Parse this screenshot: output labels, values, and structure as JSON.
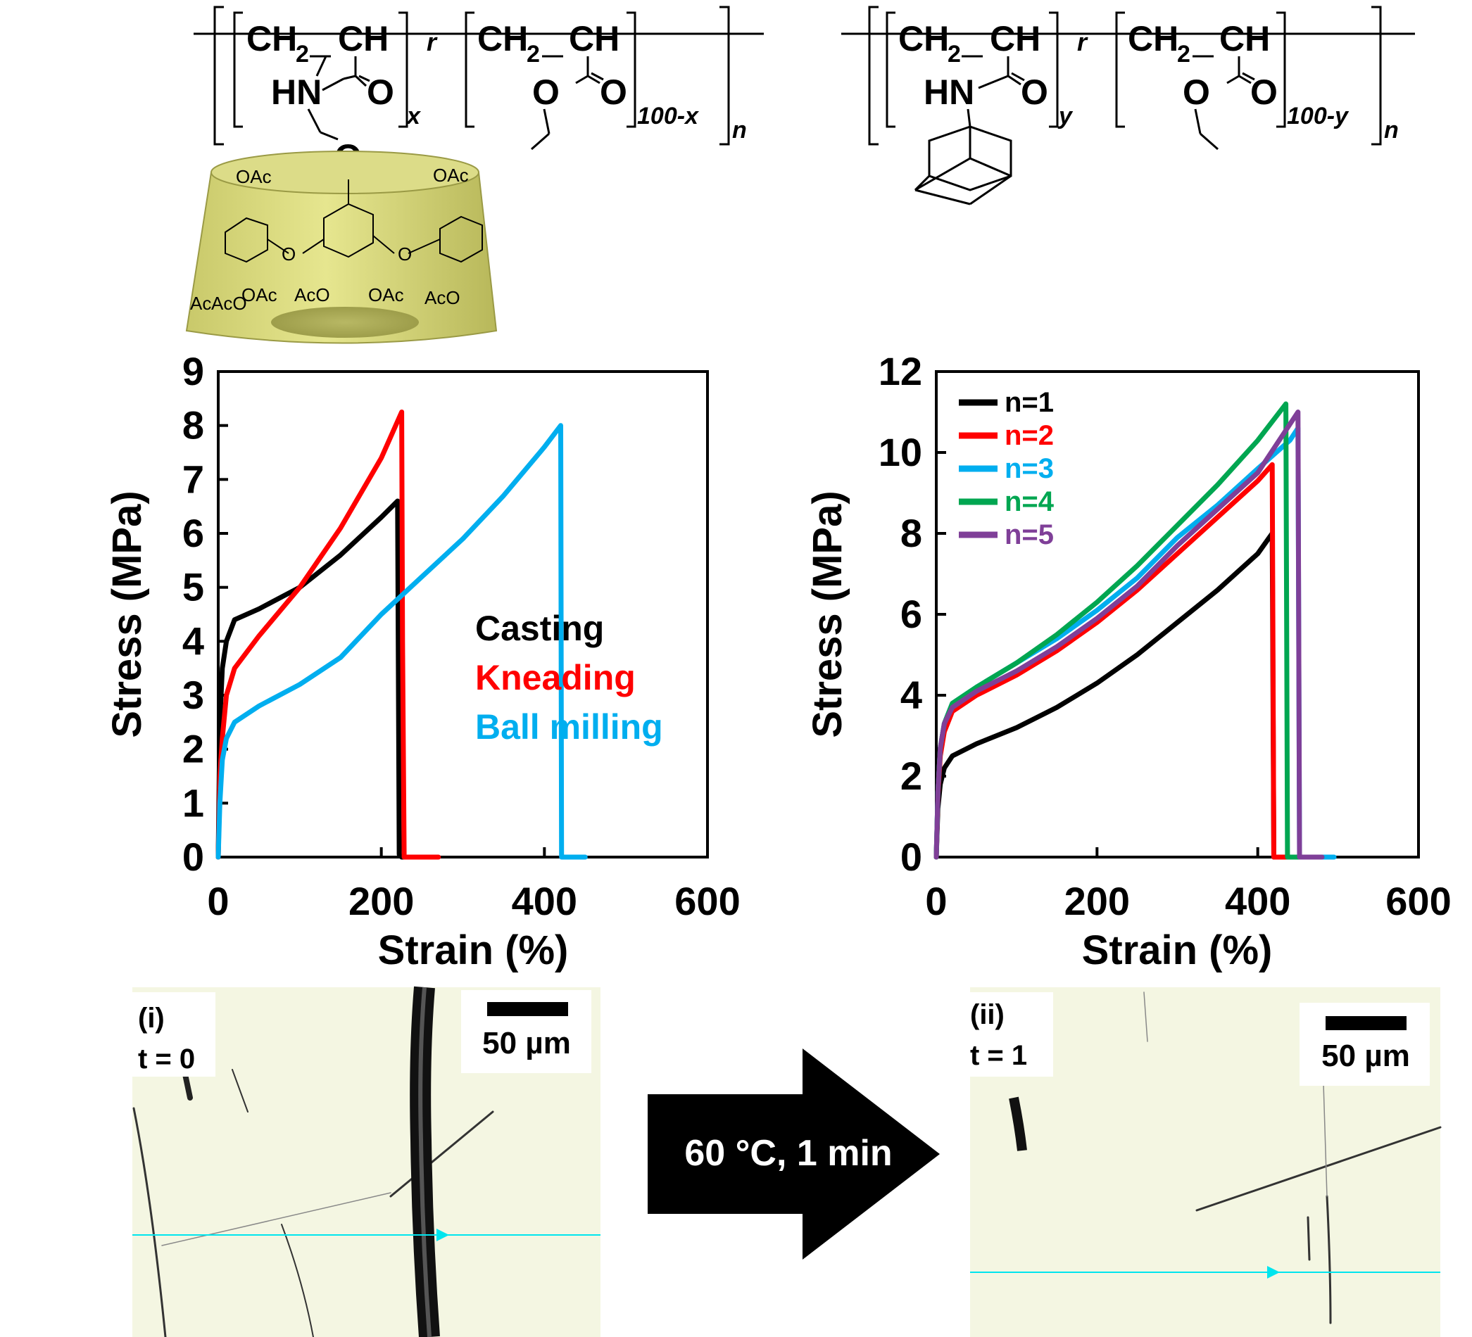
{
  "structures": {
    "left": {
      "ch2": "CH",
      "sub2": "2",
      "ch": "CH",
      "hn": "HN",
      "o": "O",
      "r": "r",
      "sub_x": "x",
      "sub_100x": "100-x",
      "sub_n": "n",
      "oac": "OAc",
      "aco": "AcO",
      "ac": "Ac",
      "o_link": "O"
    },
    "right": {
      "ch2": "CH",
      "sub2": "2",
      "ch": "CH",
      "hn": "HN",
      "o": "O",
      "r": "r",
      "sub_y": "y",
      "sub_100y": "100-y",
      "sub_n": "n"
    }
  },
  "chart_data": [
    {
      "type": "line",
      "xlabel": "Strain (%)",
      "ylabel": "Stress (MPa)",
      "xlim": [
        0,
        600
      ],
      "ylim": [
        0,
        9
      ],
      "xticks": [
        0,
        200,
        400,
        600
      ],
      "yticks": [
        0,
        1,
        2,
        3,
        4,
        5,
        6,
        7,
        8,
        9
      ],
      "legend_position": "center-right",
      "series": [
        {
          "name": "Casting",
          "color": "#000000",
          "x": [
            0,
            2,
            5,
            10,
            20,
            50,
            100,
            150,
            200,
            220,
            222,
            225,
            240,
            260
          ],
          "y": [
            0,
            2.5,
            3.5,
            4.0,
            4.4,
            4.6,
            5.0,
            5.6,
            6.3,
            6.6,
            0.05,
            0,
            0,
            0
          ]
        },
        {
          "name": "Kneading",
          "color": "#ff0000",
          "x": [
            0,
            2,
            5,
            10,
            20,
            50,
            100,
            150,
            200,
            225,
            226,
            228,
            240,
            270
          ],
          "y": [
            0,
            1.5,
            2.2,
            3.0,
            3.5,
            4.1,
            5.0,
            6.1,
            7.4,
            8.25,
            4.0,
            0,
            0,
            0
          ]
        },
        {
          "name": "Ball milling",
          "color": "#00aeef",
          "x": [
            0,
            2,
            5,
            10,
            20,
            50,
            100,
            150,
            200,
            250,
            300,
            350,
            400,
            420,
            421,
            430,
            450
          ],
          "y": [
            0,
            1.0,
            1.8,
            2.2,
            2.5,
            2.8,
            3.2,
            3.7,
            4.5,
            5.2,
            5.9,
            6.7,
            7.6,
            8.0,
            0,
            0,
            0
          ]
        }
      ]
    },
    {
      "type": "line",
      "xlabel": "Strain (%)",
      "ylabel": "Stress (MPa)",
      "xlim": [
        0,
        600
      ],
      "ylim": [
        0,
        12
      ],
      "xticks": [
        0,
        200,
        400,
        600
      ],
      "yticks": [
        0,
        2,
        4,
        6,
        8,
        10,
        12
      ],
      "legend_position": "top-left",
      "series": [
        {
          "name": "n=1",
          "color": "#000000",
          "x": [
            0,
            2,
            5,
            10,
            20,
            50,
            100,
            150,
            200,
            250,
            300,
            350,
            400,
            418,
            420,
            430,
            450
          ],
          "y": [
            0,
            1.2,
            1.8,
            2.2,
            2.5,
            2.8,
            3.2,
            3.7,
            4.3,
            5.0,
            5.8,
            6.6,
            7.5,
            8.0,
            0,
            0,
            0
          ]
        },
        {
          "name": "n=2",
          "color": "#ff0000",
          "x": [
            0,
            2,
            5,
            10,
            20,
            50,
            100,
            150,
            200,
            250,
            300,
            350,
            400,
            418,
            420,
            430,
            450
          ],
          "y": [
            0,
            1.5,
            2.5,
            3.1,
            3.6,
            4.0,
            4.5,
            5.1,
            5.8,
            6.6,
            7.5,
            8.4,
            9.3,
            9.7,
            0,
            0,
            0
          ]
        },
        {
          "name": "n=3",
          "color": "#00aeef",
          "x": [
            0,
            2,
            5,
            10,
            20,
            50,
            100,
            150,
            200,
            250,
            300,
            350,
            400,
            440,
            450,
            452,
            470,
            495
          ],
          "y": [
            0,
            1.6,
            2.7,
            3.3,
            3.8,
            4.2,
            4.8,
            5.4,
            6.1,
            6.9,
            7.9,
            8.7,
            9.6,
            10.3,
            10.6,
            0,
            0,
            0
          ]
        },
        {
          "name": "n=4",
          "color": "#00a651",
          "x": [
            0,
            2,
            5,
            10,
            20,
            50,
            100,
            150,
            200,
            250,
            300,
            350,
            400,
            435,
            437,
            445,
            460
          ],
          "y": [
            0,
            1.6,
            2.7,
            3.3,
            3.8,
            4.2,
            4.8,
            5.5,
            6.3,
            7.2,
            8.2,
            9.2,
            10.3,
            11.2,
            0,
            0,
            0
          ]
        },
        {
          "name": "n=5",
          "color": "#7f3f98",
          "x": [
            0,
            2,
            5,
            10,
            20,
            50,
            100,
            150,
            200,
            250,
            300,
            350,
            400,
            450,
            452,
            460,
            480
          ],
          "y": [
            0,
            1.6,
            2.7,
            3.3,
            3.7,
            4.1,
            4.6,
            5.2,
            5.9,
            6.7,
            7.7,
            8.6,
            9.5,
            11.0,
            0,
            0,
            0
          ]
        }
      ]
    }
  ],
  "micrographs": [
    {
      "panel": "(i)",
      "time": "t = 0",
      "scalebar": "50 µm"
    },
    {
      "panel": "(ii)",
      "time": "t = 1",
      "scalebar": "50 µm"
    }
  ],
  "arrow": {
    "label": "60 °C, 1 min"
  },
  "colors": {
    "cd_cone": "#d6d679",
    "cd_cone_dark": "#a8a84e",
    "micro_bg": "#f4f6e2",
    "guide": "#00e5ee"
  }
}
